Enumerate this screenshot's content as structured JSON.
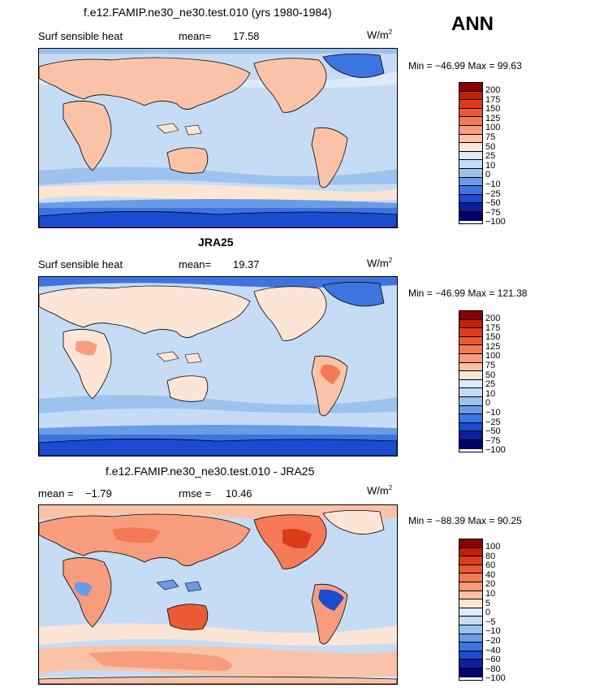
{
  "season": "ANN",
  "units": "W/m",
  "units_exp": "2",
  "panels": [
    {
      "title": "f.e12.FAMIP.ne30_ne30.test.010 (yrs 1980-1984)",
      "left_label": "Surf sensible heat",
      "stat_label": "mean=",
      "stat_value": "17.58",
      "minmax": "Min = −46.99 Max = 99.63",
      "colorbar_labels": [
        "200",
        "175",
        "150",
        "125",
        "100",
        "75",
        "50",
        "25",
        "10",
        "0",
        "−10",
        "−25",
        "−50",
        "−75",
        "−100"
      ]
    },
    {
      "title": "JRA25",
      "left_label": "Surf sensible heat",
      "stat_label": "mean=",
      "stat_value": "19.37",
      "minmax": "Min = −46.99 Max = 121.38",
      "colorbar_labels": [
        "200",
        "175",
        "150",
        "125",
        "100",
        "75",
        "50",
        "25",
        "10",
        "0",
        "−10",
        "−25",
        "−50",
        "−75",
        "−100"
      ]
    },
    {
      "title": "f.e12.FAMIP.ne30_ne30.test.010 - JRA25",
      "left_label": "mean =",
      "left_value": "−1.79",
      "stat_label": "rmse =",
      "stat_value": "10.46",
      "minmax": "Min = −88.39 Max = 90.25",
      "colorbar_labels": [
        "100",
        "80",
        "60",
        "40",
        "20",
        "10",
        "5",
        "0",
        "−5",
        "−10",
        "−20",
        "−40",
        "−60",
        "−80",
        "−100"
      ]
    }
  ],
  "colors": {
    "palette": [
      "#8b0000",
      "#c0200a",
      "#dd3b1a",
      "#eb5a34",
      "#f47a55",
      "#f79d7d",
      "#fac3a8",
      "#fde5d6",
      "#ddeaf8",
      "#c6dcf5",
      "#9cc2ee",
      "#6a9ce6",
      "#3e74e0",
      "#1a4bd1",
      "#0c1f9a",
      "#00006e"
    ],
    "ocean": "#c6dcf5",
    "land_warm": "#fac3a8"
  }
}
